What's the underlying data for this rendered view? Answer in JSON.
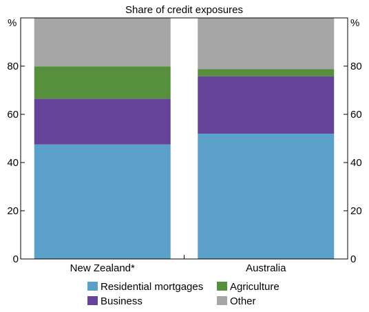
{
  "chart_data": {
    "type": "bar",
    "stacked": true,
    "title": "Share of credit exposures",
    "ylabel_left": "%",
    "ylabel_right": "%",
    "ylim": [
      0,
      100
    ],
    "yticks": [
      0,
      20,
      40,
      60,
      80
    ],
    "categories": [
      "New Zealand*",
      "Australia"
    ],
    "series": [
      {
        "name": "Residential mortgages",
        "values": [
          47.5,
          52.0
        ],
        "color": "#5ba0c9"
      },
      {
        "name": "Business",
        "values": [
          19.0,
          23.8
        ],
        "color": "#66439b"
      },
      {
        "name": "Agriculture",
        "values": [
          13.4,
          3.0
        ],
        "color": "#56903c"
      },
      {
        "name": "Other",
        "values": [
          20.1,
          21.2
        ],
        "color": "#a6a6a6"
      }
    ],
    "legend_position": "bottom",
    "grid": false
  }
}
